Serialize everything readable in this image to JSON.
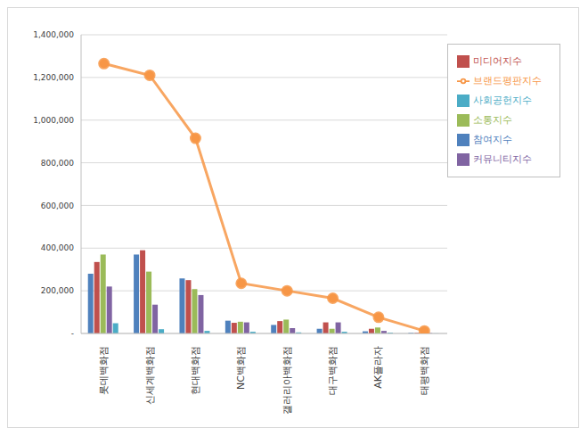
{
  "chart_data": {
    "type": "bar",
    "categories": [
      "롯데백화점",
      "신세계백화점",
      "현대백화점",
      "NC백화점",
      "갤러리아백화점",
      "대구백화점",
      "AK플라자",
      "태평백화점"
    ],
    "series": [
      {
        "name": "참여지수",
        "color": "#4F81BD",
        "values": [
          280000,
          370000,
          258000,
          60000,
          40000,
          22000,
          10000,
          3000
        ]
      },
      {
        "name": "미디어지수",
        "color": "#C0504D",
        "values": [
          335000,
          390000,
          250000,
          50000,
          58000,
          52000,
          22000,
          3000
        ]
      },
      {
        "name": "소통지수",
        "color": "#9BBB59",
        "values": [
          370000,
          290000,
          208000,
          55000,
          65000,
          22000,
          28000,
          2000
        ]
      },
      {
        "name": "커뮤니티지수",
        "color": "#8064A2",
        "values": [
          220000,
          135000,
          180000,
          52000,
          25000,
          52000,
          12000,
          2000
        ]
      },
      {
        "name": "사회공헌지수",
        "color": "#4BACC6",
        "values": [
          48000,
          20000,
          12000,
          8000,
          5000,
          8000,
          4000,
          500
        ]
      },
      {
        "name": "브랜드평판지수",
        "color": "#F79646",
        "type": "line",
        "marker": "circle",
        "values": [
          1265000,
          1210000,
          915000,
          235000,
          200000,
          165000,
          76000,
          12000
        ]
      }
    ],
    "ylim": [
      0,
      1400000
    ],
    "yticks": [
      {
        "value": 0,
        "label": "-"
      },
      {
        "value": 200000,
        "label": "200,000"
      },
      {
        "value": 400000,
        "label": "400,000"
      },
      {
        "value": 600000,
        "label": "600,000"
      },
      {
        "value": 800000,
        "label": "800,000"
      },
      {
        "value": 1000000,
        "label": "1,000,000"
      },
      {
        "value": 1200000,
        "label": "1,200,000"
      },
      {
        "value": 1400000,
        "label": "1,400,000"
      }
    ],
    "grid": true,
    "legend": "right"
  }
}
